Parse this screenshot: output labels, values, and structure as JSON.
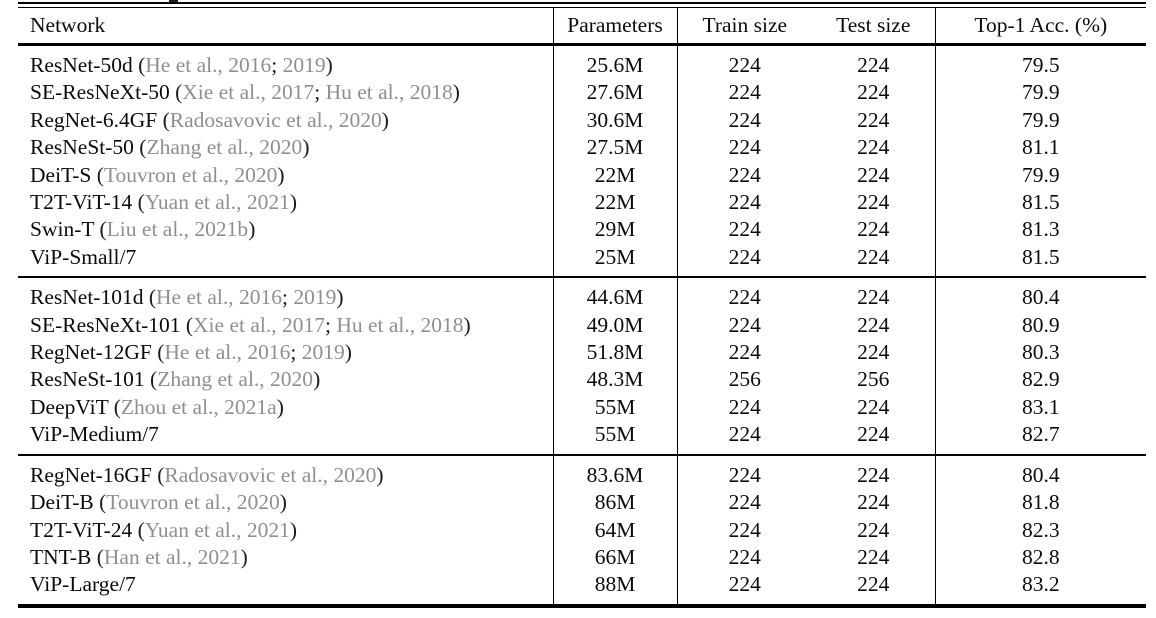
{
  "table": {
    "columns": [
      "Network",
      "Parameters",
      "Train size",
      "Test size",
      "Top-1 Acc. (%)"
    ],
    "colors": {
      "text": "#0b0b0b",
      "citation_gray": "#8f8f8f",
      "rule_black": "#000000"
    },
    "groups": [
      {
        "rows": [
          {
            "name": "ResNet-50d",
            "cites": [
              "He et al., 2016",
              "2019"
            ],
            "params": "25.6M",
            "train": "224",
            "test": "224",
            "acc": "79.5"
          },
          {
            "name": "SE-ResNeXt-50",
            "cites": [
              "Xie et al., 2017",
              "Hu et al., 2018"
            ],
            "params": "27.6M",
            "train": "224",
            "test": "224",
            "acc": "79.9"
          },
          {
            "name": "RegNet-6.4GF",
            "cites": [
              "Radosavovic et al., 2020"
            ],
            "params": "30.6M",
            "train": "224",
            "test": "224",
            "acc": "79.9"
          },
          {
            "name": "ResNeSt-50",
            "cites": [
              "Zhang et al., 2020"
            ],
            "params": "27.5M",
            "train": "224",
            "test": "224",
            "acc": "81.1"
          },
          {
            "name": "DeiT-S",
            "cites": [
              "Touvron et al., 2020"
            ],
            "params": "22M",
            "train": "224",
            "test": "224",
            "acc": "79.9"
          },
          {
            "name": "T2T-ViT-14",
            "cites": [
              "Yuan et al., 2021"
            ],
            "params": "22M",
            "train": "224",
            "test": "224",
            "acc": "81.5"
          },
          {
            "name": "Swin-T",
            "cites": [
              "Liu et al., 2021b"
            ],
            "params": "29M",
            "train": "224",
            "test": "224",
            "acc": "81.3"
          },
          {
            "name": "ViP-Small/7",
            "cites": [],
            "params": "25M",
            "train": "224",
            "test": "224",
            "acc": "81.5"
          }
        ]
      },
      {
        "rows": [
          {
            "name": "ResNet-101d",
            "cites": [
              "He et al., 2016",
              "2019"
            ],
            "params": "44.6M",
            "train": "224",
            "test": "224",
            "acc": "80.4"
          },
          {
            "name": "SE-ResNeXt-101",
            "cites": [
              "Xie et al., 2017",
              "Hu et al., 2018"
            ],
            "params": "49.0M",
            "train": "224",
            "test": "224",
            "acc": "80.9"
          },
          {
            "name": "RegNet-12GF",
            "cites": [
              "He et al., 2016",
              "2019"
            ],
            "params": "51.8M",
            "train": "224",
            "test": "224",
            "acc": "80.3"
          },
          {
            "name": "ResNeSt-101",
            "cites": [
              "Zhang et al., 2020"
            ],
            "params": "48.3M",
            "train": "256",
            "test": "256",
            "acc": "82.9"
          },
          {
            "name": "DeepViT",
            "cites": [
              "Zhou et al., 2021a"
            ],
            "params": "55M",
            "train": "224",
            "test": "224",
            "acc": "83.1"
          },
          {
            "name": "ViP-Medium/7",
            "cites": [],
            "params": "55M",
            "train": "224",
            "test": "224",
            "acc": "82.7"
          }
        ]
      },
      {
        "rows": [
          {
            "name": "RegNet-16GF",
            "cites": [
              "Radosavovic et al., 2020"
            ],
            "params": "83.6M",
            "train": "224",
            "test": "224",
            "acc": "80.4"
          },
          {
            "name": "DeiT-B",
            "cites": [
              "Touvron et al., 2020"
            ],
            "params": "86M",
            "train": "224",
            "test": "224",
            "acc": "81.8"
          },
          {
            "name": "T2T-ViT-24",
            "cites": [
              "Yuan et al., 2021"
            ],
            "params": "64M",
            "train": "224",
            "test": "224",
            "acc": "82.3"
          },
          {
            "name": "TNT-B",
            "cites": [
              "Han et al., 2021"
            ],
            "params": "66M",
            "train": "224",
            "test": "224",
            "acc": "82.8"
          },
          {
            "name": "ViP-Large/7",
            "cites": [],
            "params": "88M",
            "train": "224",
            "test": "224",
            "acc": "83.2"
          }
        ]
      }
    ]
  }
}
